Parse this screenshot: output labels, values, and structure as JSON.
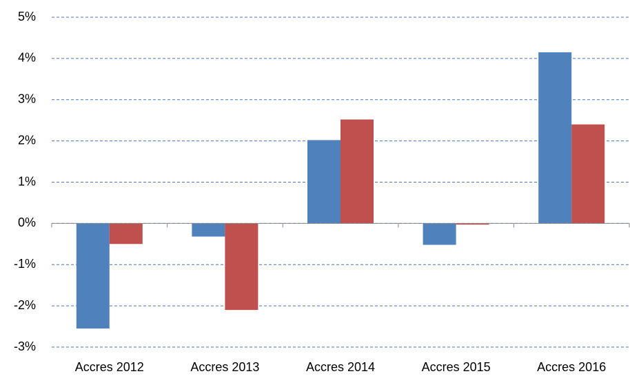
{
  "chart_data": {
    "type": "bar",
    "categories": [
      "Accres 2012",
      "Accres 2013",
      "Accres 2014",
      "Accres 2015",
      "Accres 2016"
    ],
    "series": [
      {
        "color": "#4f81bd",
        "values": [
          -2.55,
          -0.32,
          2.02,
          -0.52,
          4.15
        ]
      },
      {
        "color": "#c0504d",
        "values": [
          -0.5,
          -2.1,
          2.52,
          -0.03,
          2.4
        ]
      }
    ],
    "ylim": [
      -3,
      5
    ],
    "yticks": [
      {
        "value": -3,
        "label": "-3%"
      },
      {
        "value": -2,
        "label": "-2%"
      },
      {
        "value": -1,
        "label": "-1%"
      },
      {
        "value": 0,
        "label": "0%"
      },
      {
        "value": 1,
        "label": "1%"
      },
      {
        "value": 2,
        "label": "2%"
      },
      {
        "value": 3,
        "label": "3%"
      },
      {
        "value": 4,
        "label": "4%"
      },
      {
        "value": 5,
        "label": "5%"
      }
    ],
    "grid": true
  }
}
